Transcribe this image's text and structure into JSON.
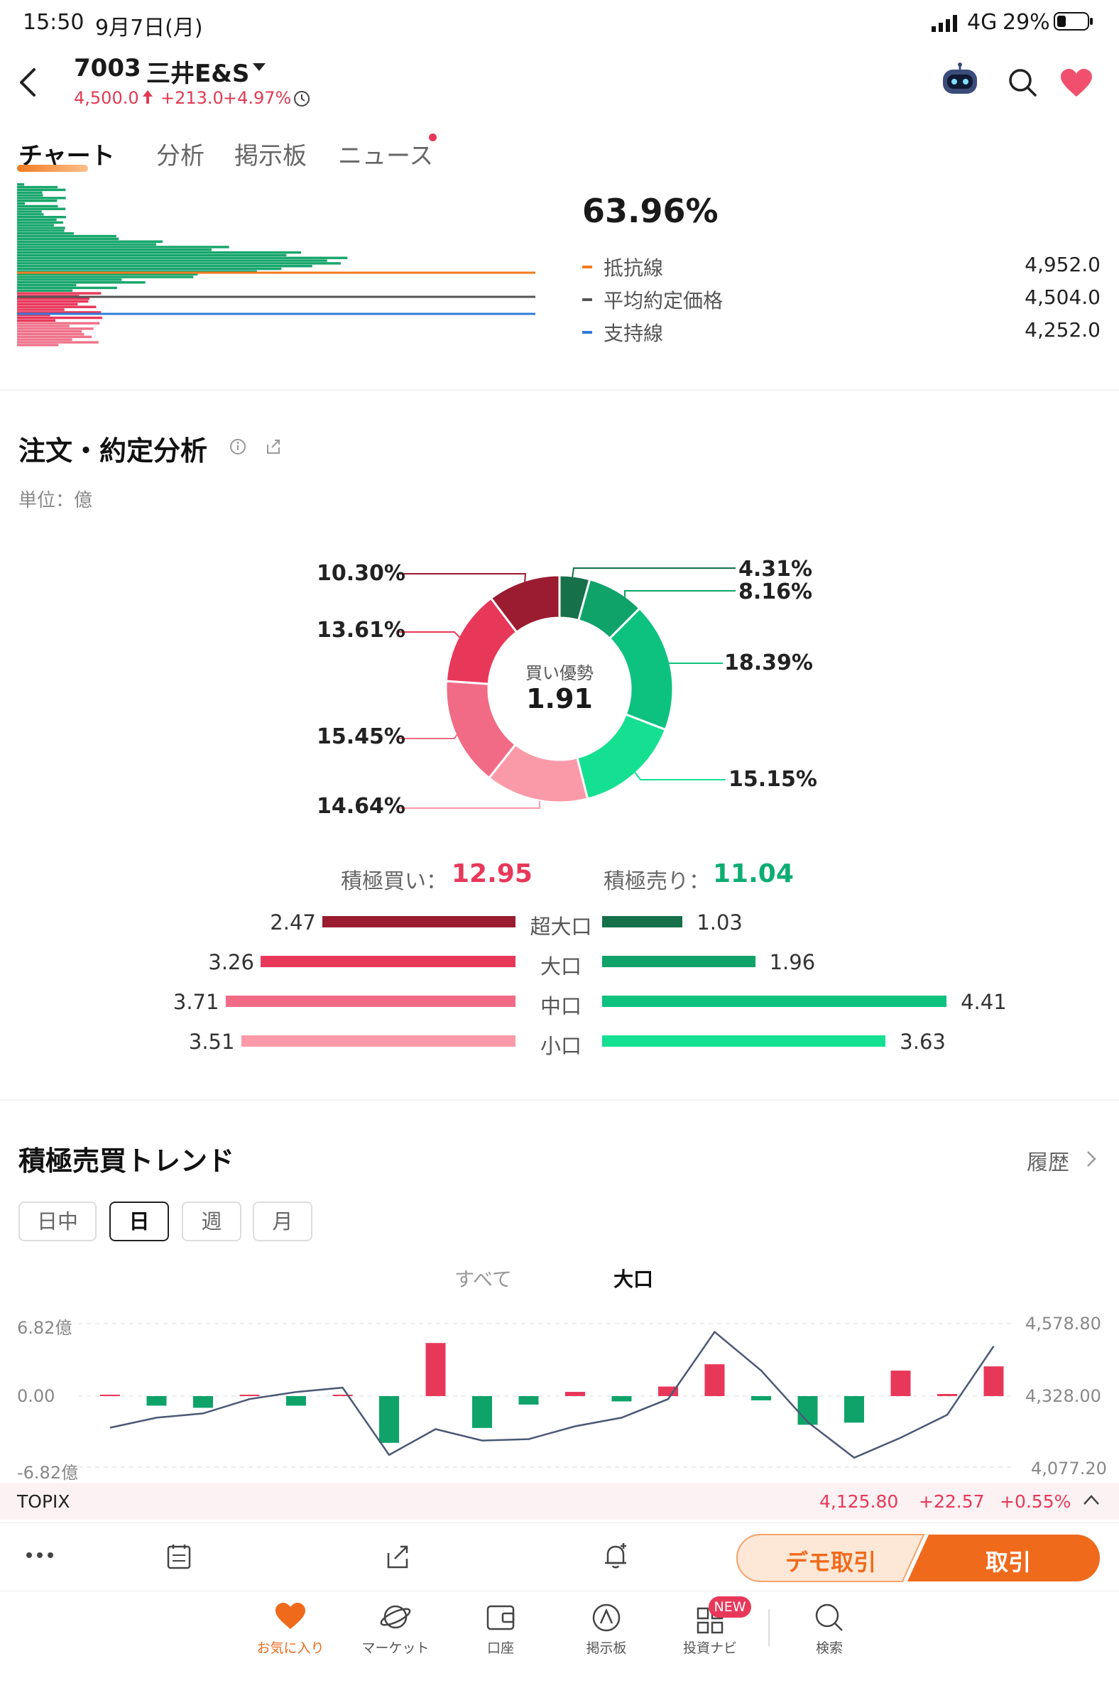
{
  "status_bar": {
    "time": "15:50",
    "date": "9月7日(月)",
    "network": "4G",
    "battery": "29%"
  },
  "header": {
    "ticker": "7003",
    "name": "三井E&S",
    "price": "4,500.0",
    "change": "+213.0",
    "change_pct": "+4.97%"
  },
  "tabs": [
    "チャート",
    "分析",
    "掲示板",
    "ニュース"
  ],
  "profile": {
    "percent": "63.96%",
    "legend": [
      {
        "label": "抵抗線",
        "value": "4,952.0",
        "color": "#f47a20"
      },
      {
        "label": "平均約定価格",
        "value": "4,504.0",
        "color": "#555555"
      },
      {
        "label": "支持線",
        "value": "4,252.0",
        "color": "#2f7bd8"
      }
    ]
  },
  "order_analysis": {
    "title": "注文・約定分析",
    "unit": "単位：億",
    "donut_center_label": "買い優勢",
    "donut_center_value": "1.91",
    "slice_labels": [
      "10.30%",
      "13.61%",
      "15.45%",
      "14.64%",
      "4.31%",
      "8.16%",
      "18.39%",
      "15.15%"
    ],
    "buy_label": "積極買い：",
    "buy_total": "12.95",
    "sell_label": "積極売り：",
    "sell_total": "11.04",
    "rows": [
      {
        "category": "超大口",
        "buy": "2.47",
        "sell": "1.03"
      },
      {
        "category": "大口",
        "buy": "3.26",
        "sell": "1.96"
      },
      {
        "category": "中口",
        "buy": "3.71",
        "sell": "4.41"
      },
      {
        "category": "小口",
        "buy": "3.51",
        "sell": "3.63"
      }
    ]
  },
  "chart_data": {
    "type": "pie",
    "title": "",
    "slices": [
      {
        "label": "10.30%",
        "value": 10.3,
        "color": "#9b1b30"
      },
      {
        "label": "13.61%",
        "value": 13.61,
        "color": "#e8385a"
      },
      {
        "label": "15.45%",
        "value": 15.45,
        "color": "#f26b86"
      },
      {
        "label": "14.64%",
        "value": 14.64,
        "color": "#fa9aa8"
      },
      {
        "label": "4.31%",
        "value": 4.31,
        "color": "#16704a"
      },
      {
        "label": "8.16%",
        "value": 8.16,
        "color": "#0fa36a"
      },
      {
        "label": "18.39%",
        "value": 18.39,
        "color": "#0dc27f"
      },
      {
        "label": "15.15%",
        "value": 15.15,
        "color": "#15e091"
      }
    ]
  },
  "trend": {
    "title": "積極売買トレンド",
    "history": "履歴",
    "chips": [
      "日中",
      "日",
      "週",
      "月"
    ],
    "active_chip": "日",
    "sub_tabs": [
      "すべて",
      "大口"
    ],
    "y_left": [
      "6.82億",
      "0.00",
      "-6.82億"
    ],
    "y_right": [
      "4,578.80",
      "4,328.00",
      "4,077.20"
    ],
    "bars": [
      0.1,
      -0.9,
      -1.1,
      0.05,
      -0.9,
      0.05,
      -4.4,
      5.0,
      -3.0,
      -0.8,
      0.4,
      -0.5,
      0.9,
      3.0,
      -0.4,
      -2.7,
      -2.5,
      2.4,
      0.2,
      2.8
    ],
    "price_line": [
      4215,
      4250,
      4265,
      4315,
      4340,
      4355,
      4120,
      4210,
      4170,
      4175,
      4220,
      4250,
      4315,
      4550,
      4415,
      4235,
      4110,
      4180,
      4260,
      4500
    ]
  },
  "topix": {
    "label": "TOPIX",
    "value": "4,125.80",
    "change": "+22.57",
    "change_pct": "+0.55%"
  },
  "actions": {
    "demo": "デモ取引",
    "trade": "取引"
  },
  "bottom_nav": [
    "お気に入り",
    "マーケット",
    "口座",
    "掲示板",
    "投資ナビ",
    "検索"
  ],
  "new_badge": "NEW"
}
